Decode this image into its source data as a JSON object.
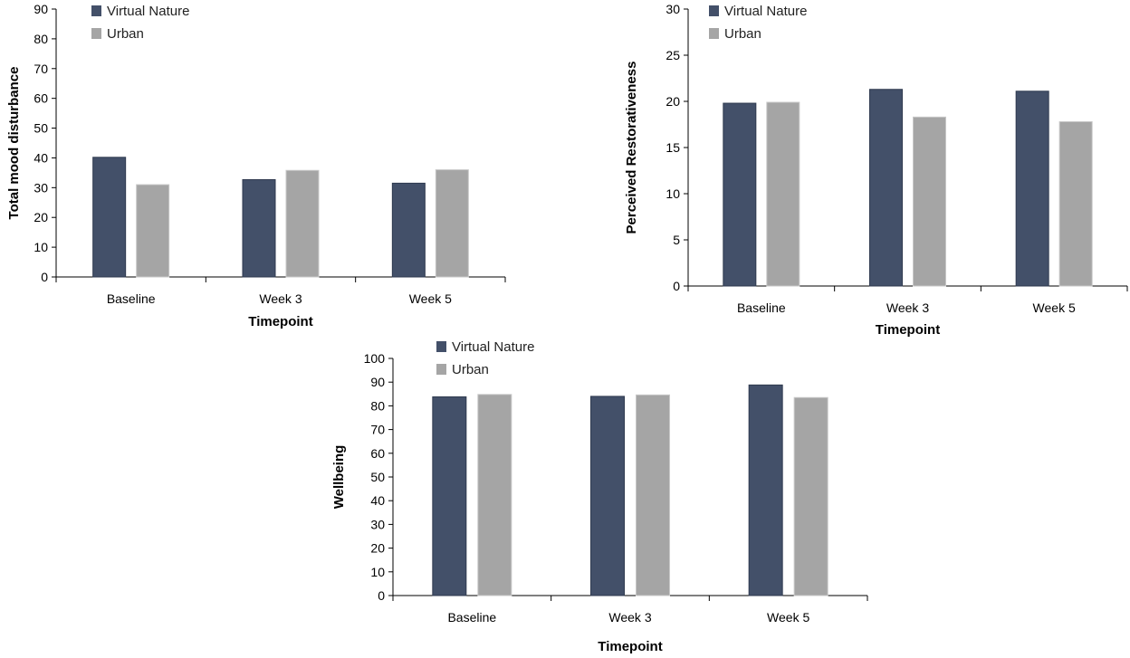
{
  "chart_data": [
    {
      "type": "bar",
      "categories": [
        "Baseline",
        "Week 3",
        "Week 5"
      ],
      "series": [
        {
          "name": "Virtual Nature",
          "values": [
            40.2,
            32.7,
            31.5
          ],
          "color": "#435069"
        },
        {
          "name": "Urban",
          "values": [
            31.0,
            35.8,
            36.0
          ],
          "color": "#a5a5a5"
        }
      ],
      "ylim": [
        0,
        90
      ],
      "ytick_step": 10,
      "xlabel": "Timepoint",
      "ylabel": "Total mood disturbance",
      "legend": "top-left"
    },
    {
      "type": "bar",
      "categories": [
        "Baseline",
        "Week 3",
        "Week 5"
      ],
      "series": [
        {
          "name": "Virtual Nature",
          "values": [
            19.8,
            21.3,
            21.1
          ],
          "color": "#435069"
        },
        {
          "name": "Urban",
          "values": [
            19.9,
            18.3,
            17.8
          ],
          "color": "#a5a5a5"
        }
      ],
      "ylim": [
        0,
        30
      ],
      "ytick_step": 5,
      "xlabel": "Timepoint",
      "ylabel": "Perceived Restorativeness",
      "legend": "top-left"
    },
    {
      "type": "bar",
      "categories": [
        "Baseline",
        "Week 3",
        "Week 5"
      ],
      "series": [
        {
          "name": "Virtual Nature",
          "values": [
            83.8,
            84.0,
            88.8
          ],
          "color": "#435069"
        },
        {
          "name": "Urban",
          "values": [
            84.8,
            84.6,
            83.5
          ],
          "color": "#a5a5a5"
        }
      ],
      "ylim": [
        0,
        100
      ],
      "ytick_step": 10,
      "xlabel": "Timepoint",
      "ylabel": "Wellbeing",
      "legend": "top-left"
    }
  ]
}
